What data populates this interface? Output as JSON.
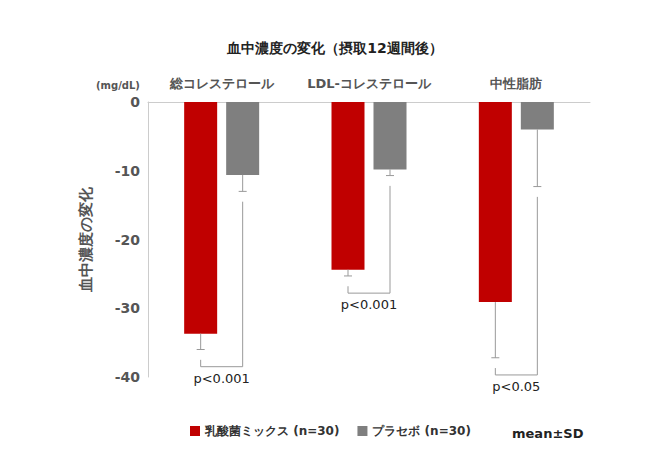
{
  "chart_data": {
    "type": "bar",
    "title": "血中濃度の変化（摂取12週間後）",
    "y_label": "血中濃度の変化",
    "y_unit": "(mg/dL)",
    "categories": [
      "総コレステロール",
      "LDL-コレステロール",
      "中性脂肪"
    ],
    "series": [
      {
        "name": "乳酸菌ミックス (n=30)",
        "color": "#c00000",
        "values": [
          -33.7,
          -24.4,
          -29.1
        ],
        "sd": [
          2.3,
          0.9,
          8.1
        ]
      },
      {
        "name": "プラセボ (n=30)",
        "color": "#7f7f7f",
        "values": [
          -10.6,
          -9.8,
          -4.0
        ],
        "sd": [
          2.4,
          0.9,
          8.3
        ]
      }
    ],
    "ylim": [
      -40,
      0
    ],
    "yticks": [
      -40,
      -30,
      -20,
      -10,
      0
    ],
    "grid": false,
    "legend": "bottom",
    "annotations": [
      {
        "category": "総コレステロール",
        "text": "p<0.001"
      },
      {
        "category": "LDL-コレステロール",
        "text": "p<0.001"
      },
      {
        "category": "中性脂肪",
        "text": "p<0.05"
      },
      {
        "text": "mean±SD"
      }
    ]
  }
}
